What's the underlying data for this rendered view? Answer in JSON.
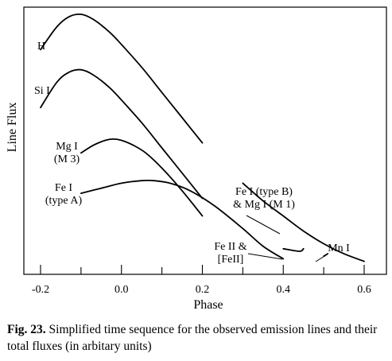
{
  "chart_data": {
    "type": "line",
    "xlabel": "Phase",
    "ylabel": "Line Flux",
    "xlim": [
      -0.2,
      0.6
    ],
    "xticks": [
      "-0.2",
      "0.0",
      "0.2",
      "0.4",
      "0.6"
    ],
    "yticks_shown": false,
    "grid": false,
    "series": [
      {
        "name": "H",
        "label_lines": [
          "H"
        ],
        "x": [
          -0.2,
          -0.16,
          -0.13,
          -0.1,
          -0.07,
          -0.03,
          0.0,
          0.05,
          0.1,
          0.15,
          0.2
        ],
        "y": [
          0.86,
          0.95,
          0.99,
          1.0,
          0.98,
          0.93,
          0.88,
          0.79,
          0.69,
          0.59,
          0.49
        ]
      },
      {
        "name": "Si I",
        "label_lines": [
          "Si I"
        ],
        "x": [
          -0.2,
          -0.16,
          -0.13,
          -0.1,
          -0.07,
          -0.03,
          0.0,
          0.05,
          0.1,
          0.15,
          0.2
        ],
        "y": [
          0.63,
          0.73,
          0.77,
          0.78,
          0.76,
          0.71,
          0.66,
          0.57,
          0.47,
          0.37,
          0.27
        ]
      },
      {
        "name": "Mg I (M 3)",
        "label_lines": [
          "Mg I",
          "(M 3)"
        ],
        "x": [
          -0.1,
          -0.07,
          -0.04,
          -0.02,
          0.0,
          0.03,
          0.06,
          0.1,
          0.15,
          0.2
        ],
        "y": [
          0.45,
          0.48,
          0.5,
          0.505,
          0.5,
          0.48,
          0.45,
          0.39,
          0.3,
          0.2
        ]
      },
      {
        "name": "Fe I (type A)",
        "label_lines": [
          "Fe I",
          "(type A)"
        ],
        "x": [
          -0.1,
          -0.05,
          0.0,
          0.05,
          0.08,
          0.12,
          0.17,
          0.23,
          0.3,
          0.35,
          0.4
        ],
        "y": [
          0.29,
          0.31,
          0.33,
          0.34,
          0.34,
          0.33,
          0.3,
          0.24,
          0.15,
          0.08,
          0.03
        ]
      },
      {
        "name": "Fe I (type B) & Mg I (M 1)",
        "label_lines": [
          "Fe I (type B)",
          "& Mg I (M 1)"
        ],
        "x": [
          0.3,
          0.35,
          0.4,
          0.45,
          0.5,
          0.55,
          0.6
        ],
        "y": [
          0.33,
          0.26,
          0.2,
          0.14,
          0.09,
          0.05,
          0.02
        ]
      },
      {
        "name": "Fe II & [FeII]",
        "label_lines": [
          "Fe II &",
          "[FeII]"
        ],
        "x": [
          0.4,
          0.44,
          0.45
        ],
        "y": [
          0.07,
          0.06,
          0.07
        ]
      },
      {
        "name": "Mn I",
        "label_lines": [
          "Mn I"
        ],
        "x": [
          0.5,
          0.51
        ],
        "y": [
          0.04,
          0.05
        ]
      }
    ]
  },
  "caption": {
    "label": "Fig. 23.",
    "text": " Simplified time sequence for the observed emission lines and their total fluxes (in arbitary units)"
  }
}
